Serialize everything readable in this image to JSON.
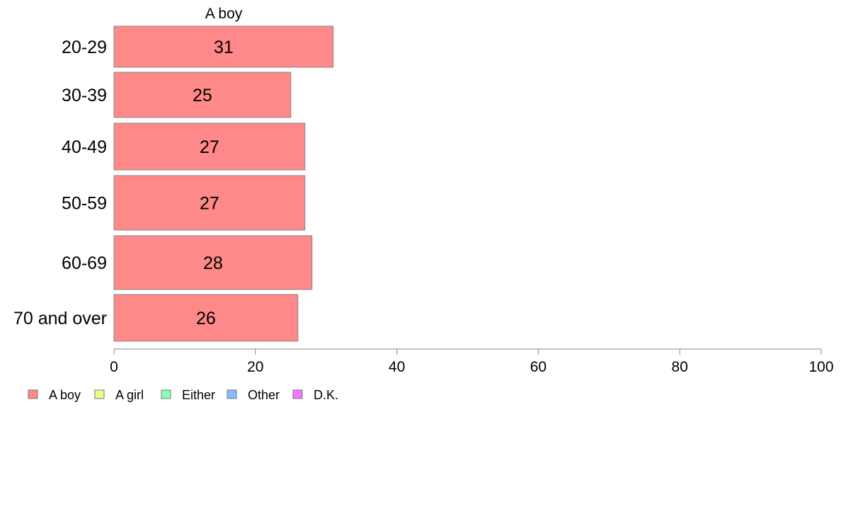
{
  "chart_data": {
    "type": "bar",
    "orientation": "horizontal",
    "title": "A boy",
    "categories": [
      "20-29",
      "30-39",
      "40-49",
      "50-59",
      "60-69",
      "70 and over"
    ],
    "series": [
      {
        "name": "A boy",
        "values": [
          31,
          25,
          27,
          27,
          28,
          26
        ],
        "color": "#ff8888"
      }
    ],
    "xlim": [
      0,
      100
    ],
    "xticks": [
      0,
      20,
      40,
      60,
      80,
      100
    ],
    "grid": false,
    "legend": {
      "position": "bottom-left",
      "entries": [
        {
          "label": "A boy",
          "color": "#ff8888"
        },
        {
          "label": "A girl",
          "color": "#eeff88"
        },
        {
          "label": "Either",
          "color": "#88ffbb"
        },
        {
          "label": "Other",
          "color": "#88bbff"
        },
        {
          "label": "D.K.",
          "color": "#ee77ff"
        }
      ]
    }
  }
}
